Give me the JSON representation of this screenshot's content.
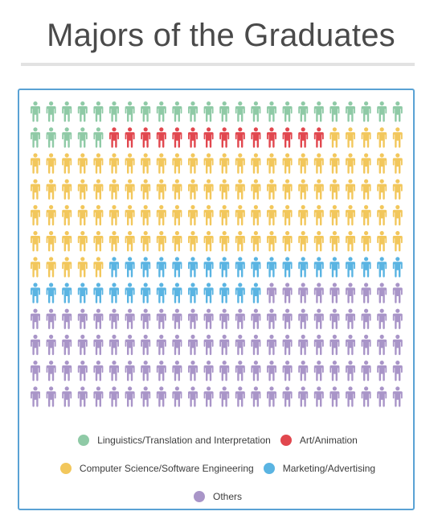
{
  "title": "Majors of the Graduates",
  "chart_data": {
    "type": "pictogram",
    "unit": "person",
    "columns": 24,
    "rows": 12,
    "total": 288,
    "series": [
      {
        "name": "Linguistics/Translation and Interpretation",
        "value": 29,
        "color": "#8fcaa6"
      },
      {
        "name": "Art/Animation",
        "value": 14,
        "color": "#e1474e"
      },
      {
        "name": "Computer Science/Software Engineering",
        "value": 106,
        "color": "#f2c75c"
      },
      {
        "name": "Marketing/Advertising",
        "value": 34,
        "color": "#5ab4e2"
      },
      {
        "name": "Others",
        "value": 105,
        "color": "#a995c8"
      }
    ],
    "legend": {
      "rows": [
        [
          {
            "label": "Linguistics/Translation and Interpretation",
            "color": "#8fcaa6"
          },
          {
            "label": "Art/Animation",
            "color": "#e1474e"
          }
        ],
        [
          {
            "label": "Computer Science/Software Engineering",
            "color": "#f2c75c"
          },
          {
            "label": "Marketing/Advertising",
            "color": "#5ab4e2"
          }
        ],
        [
          {
            "label": "Others",
            "color": "#a995c8"
          }
        ]
      ]
    }
  }
}
